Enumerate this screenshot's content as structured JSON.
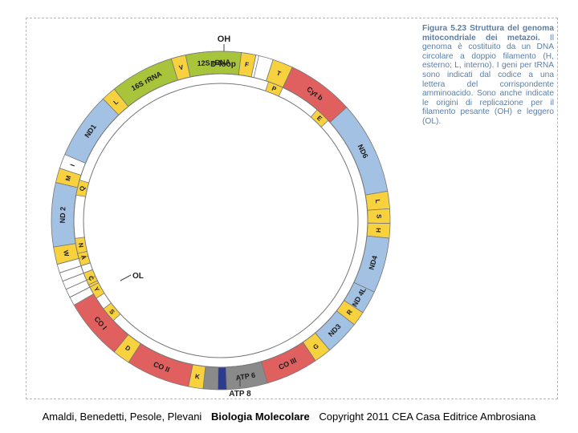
{
  "figure": {
    "caption_head": "Figura 5.23 Struttura del genoma mitocondriale dei metazoi.",
    "caption_body": "Il genoma è costituito da un DNA circolare a doppio filamento (H, esterno; L, interno). I geni per tRNA sono indicati dal codice a una lettera del corrispondente amminoacido. Sono anche indicate le origini di replicazione per il filamento pesante (OH) e leggero (OL)."
  },
  "colors": {
    "rrna": "#a8c43a",
    "protein_blue": "#a3c2e3",
    "trna": "#f7d23e",
    "complex_red": "#e06060",
    "atp_gray": "#8a8a8a",
    "atp8_navy": "#2c3c8c",
    "empty": "#ffffff",
    "stroke": "#777777"
  },
  "labels": {
    "oh": "OH",
    "ol": "OL",
    "dloop": "D-loop",
    "atp8": "ATP 8"
  },
  "segments": [
    {
      "name": "D-loop",
      "start": -27,
      "end": 18,
      "kind": "empty",
      "text": ""
    },
    {
      "name": "T",
      "start": 18,
      "end": 25,
      "kind": "trna",
      "text": "T"
    },
    {
      "name": "Cyt b",
      "start": 25,
      "end": 48,
      "kind": "complex_red",
      "text": "Cyt b"
    },
    {
      "name": "ND6",
      "start": 48,
      "end": 80,
      "kind": "protein_blue",
      "text": "ND6"
    },
    {
      "name": "L",
      "start": 80,
      "end": 86,
      "kind": "trna",
      "text": "L"
    },
    {
      "name": "S",
      "start": 86,
      "end": 91,
      "kind": "trna",
      "text": "S"
    },
    {
      "name": "H",
      "start": 91,
      "end": 96,
      "kind": "trna",
      "text": "H"
    },
    {
      "name": "ND4",
      "start": 96,
      "end": 115,
      "kind": "protein_blue",
      "text": "ND4"
    },
    {
      "name": "ND4L",
      "start": 115,
      "end": 123,
      "kind": "protein_blue",
      "text": "ND 4L"
    },
    {
      "name": "R",
      "start": 123,
      "end": 128,
      "kind": "trna",
      "text": "R"
    },
    {
      "name": "ND3",
      "start": 128,
      "end": 140,
      "kind": "protein_blue",
      "text": "ND3"
    },
    {
      "name": "G",
      "start": 140,
      "end": 146,
      "kind": "trna",
      "text": "G"
    },
    {
      "name": "CO III",
      "start": 146,
      "end": 164,
      "kind": "complex_red",
      "text": "CO III"
    },
    {
      "name": "ATP 6",
      "start": 164,
      "end": 178,
      "kind": "atp_gray",
      "text": "ATP 6"
    },
    {
      "name": "ATP 8",
      "start": 178,
      "end": 181,
      "kind": "atp8_navy",
      "text": ""
    },
    {
      "name": "ATP 8 gray",
      "start": 181,
      "end": 186,
      "kind": "atp_gray",
      "text": ""
    },
    {
      "name": "K",
      "start": 186,
      "end": 191,
      "kind": "trna",
      "text": "K"
    },
    {
      "name": "CO II",
      "start": 191,
      "end": 213,
      "kind": "complex_red",
      "text": "CO II"
    },
    {
      "name": "D",
      "start": 213,
      "end": 219,
      "kind": "trna",
      "text": "D"
    },
    {
      "name": "CO I",
      "start": 219,
      "end": 240,
      "kind": "complex_red",
      "text": "CO I"
    },
    {
      "name": "gap1",
      "start": 240,
      "end": 243,
      "kind": "empty",
      "text": ""
    },
    {
      "name": "gap2",
      "start": 243,
      "end": 246,
      "kind": "empty",
      "text": ""
    },
    {
      "name": "gap3",
      "start": 246,
      "end": 249,
      "kind": "empty",
      "text": ""
    },
    {
      "name": "gap4",
      "start": 249,
      "end": 252,
      "kind": "empty",
      "text": ""
    },
    {
      "name": "gap5",
      "start": 252,
      "end": 255,
      "kind": "empty",
      "text": ""
    },
    {
      "name": "W",
      "start": 255,
      "end": 261,
      "kind": "trna",
      "text": "W"
    },
    {
      "name": "ND2",
      "start": 261,
      "end": 283,
      "kind": "protein_blue",
      "text": "ND 2"
    },
    {
      "name": "M",
      "start": 283,
      "end": 288,
      "kind": "trna",
      "text": "M"
    },
    {
      "name": "I",
      "start": 288,
      "end": 293,
      "kind": "empty",
      "text": "I"
    },
    {
      "name": "ND1",
      "start": 293,
      "end": 316,
      "kind": "protein_blue",
      "text": "ND1"
    },
    {
      "name": "L2",
      "start": 316,
      "end": 321,
      "kind": "trna",
      "text": "L"
    },
    {
      "name": "16S rRNA",
      "start": 321,
      "end": 343,
      "kind": "rrna",
      "text": "16S rRNA"
    },
    {
      "name": "V",
      "start": 343,
      "end": 348,
      "kind": "trna",
      "text": "V"
    },
    {
      "name": "12S rRNA",
      "start": 348,
      "end": 367,
      "kind": "rrna",
      "text": "12S rRNA"
    },
    {
      "name": "F",
      "start": 367,
      "end": 372,
      "kind": "trna",
      "text": "F"
    },
    {
      "name": "gapF",
      "start": 372,
      "end": 373,
      "kind": "empty",
      "text": ""
    }
  ],
  "inner_trnas": [
    {
      "name": "P",
      "angle": 22,
      "text": "P"
    },
    {
      "name": "E",
      "angle": 44,
      "text": "E"
    },
    {
      "name": "S2",
      "angle": 230,
      "text": "S"
    },
    {
      "name": "Q",
      "angle": 283,
      "text": "Q"
    }
  ],
  "inner_ol_trnas": [
    {
      "name": "A",
      "angle": 255,
      "text": "A"
    },
    {
      "name": "N",
      "angle": 260,
      "text": "N"
    },
    {
      "name": "C",
      "angle": 246,
      "text": "C"
    },
    {
      "name": "Y",
      "angle": 241,
      "text": "Y"
    }
  ],
  "footer": {
    "authors": "Amaldi, Benedetti, Pesole, Plevani",
    "title": "Biologia Molecolare",
    "copyright": "Copyright 2011 CEA Casa Editrice Ambrosiana"
  }
}
